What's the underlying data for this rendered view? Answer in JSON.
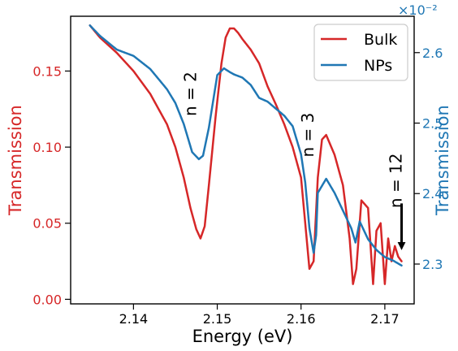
{
  "chart_data": {
    "type": "line",
    "xlabel": "Energy (eV)",
    "ylabel_left": "Transmission",
    "ylabel_right": "Transmission",
    "right_axis_multiplier": "×10⁻²",
    "xlim": [
      2.1325,
      2.1735
    ],
    "ylim_left": [
      -0.003,
      0.186
    ],
    "ylim_right": [
      2.2435,
      2.6516
    ],
    "x_ticks": [
      2.14,
      2.15,
      2.16,
      2.17
    ],
    "x_tick_labels": [
      "2.14",
      "2.15",
      "2.16",
      "2.17"
    ],
    "y_ticks_left": [
      0.0,
      0.05,
      0.1,
      0.15
    ],
    "y_tick_labels_left": [
      "0.00",
      "0.05",
      "0.10",
      "0.15"
    ],
    "y_ticks_right": [
      2.3,
      2.4,
      2.5,
      2.6
    ],
    "y_tick_labels_right": [
      "2.3",
      "2.4",
      "2.5",
      "2.6"
    ],
    "grid": false,
    "legend_position": "top-right",
    "colors": {
      "left_axis": "#d62728",
      "right_axis": "#1f77b4",
      "bulk": "#d62728",
      "nps": "#1f77b4"
    },
    "series": [
      {
        "name": "Bulk",
        "axis": "left",
        "color": "#d62728",
        "x": [
          2.1348,
          2.136,
          2.138,
          2.14,
          2.142,
          2.144,
          2.145,
          2.146,
          2.1468,
          2.1475,
          2.148,
          2.1485,
          2.149,
          2.1498,
          2.1505,
          2.151,
          2.1515,
          2.152,
          2.1525,
          2.153,
          2.154,
          2.155,
          2.156,
          2.157,
          2.158,
          2.159,
          2.16,
          2.1605,
          2.161,
          2.1615,
          2.162,
          2.1625,
          2.163,
          2.164,
          2.165,
          2.1658,
          2.1662,
          2.1666,
          2.1672,
          2.168,
          2.1686,
          2.169,
          2.1695,
          2.17,
          2.1704,
          2.1708,
          2.1712,
          2.1716,
          2.172
        ],
        "y": [
          0.18,
          0.172,
          0.162,
          0.15,
          0.135,
          0.115,
          0.1,
          0.08,
          0.06,
          0.046,
          0.04,
          0.048,
          0.075,
          0.12,
          0.155,
          0.172,
          0.178,
          0.178,
          0.175,
          0.171,
          0.164,
          0.155,
          0.14,
          0.128,
          0.115,
          0.1,
          0.08,
          0.05,
          0.02,
          0.025,
          0.08,
          0.105,
          0.108,
          0.095,
          0.075,
          0.04,
          0.01,
          0.02,
          0.065,
          0.06,
          0.01,
          0.045,
          0.05,
          0.01,
          0.04,
          0.025,
          0.035,
          0.028,
          0.025
        ]
      },
      {
        "name": "NPs",
        "axis": "right",
        "color": "#1f77b4",
        "x": [
          2.1348,
          2.136,
          2.138,
          2.14,
          2.142,
          2.144,
          2.145,
          2.146,
          2.147,
          2.1478,
          2.1483,
          2.149,
          2.15,
          2.1508,
          2.1515,
          2.152,
          2.153,
          2.154,
          2.155,
          2.156,
          2.157,
          2.158,
          2.159,
          2.16,
          2.1605,
          2.161,
          2.1615,
          2.1618,
          2.162,
          2.163,
          2.164,
          2.165,
          2.166,
          2.1665,
          2.167,
          2.168,
          2.169,
          2.17,
          2.171,
          2.172
        ],
        "y": [
          2.64,
          2.625,
          2.605,
          2.595,
          2.575,
          2.545,
          2.525,
          2.495,
          2.455,
          2.445,
          2.45,
          2.49,
          2.565,
          2.575,
          2.57,
          2.567,
          2.563,
          2.553,
          2.535,
          2.53,
          2.52,
          2.51,
          2.495,
          2.455,
          2.415,
          2.35,
          2.315,
          2.34,
          2.4,
          2.42,
          2.4,
          2.375,
          2.35,
          2.33,
          2.36,
          2.335,
          2.32,
          2.31,
          2.305,
          2.298
        ]
      }
    ],
    "annotations": [
      {
        "text": "n = 2",
        "x": 2.1475,
        "y": 0.135,
        "axis": "left",
        "rotation": -90
      },
      {
        "text": "n = 3",
        "x": 2.1615,
        "y": 0.108,
        "axis": "left",
        "rotation": -90
      },
      {
        "text": "n = 12",
        "x": 2.172,
        "y": 0.078,
        "axis": "left",
        "rotation": -90
      }
    ],
    "arrow": {
      "x": 2.172,
      "y_from": 0.063,
      "y_to": 0.035,
      "axis": "left"
    }
  }
}
